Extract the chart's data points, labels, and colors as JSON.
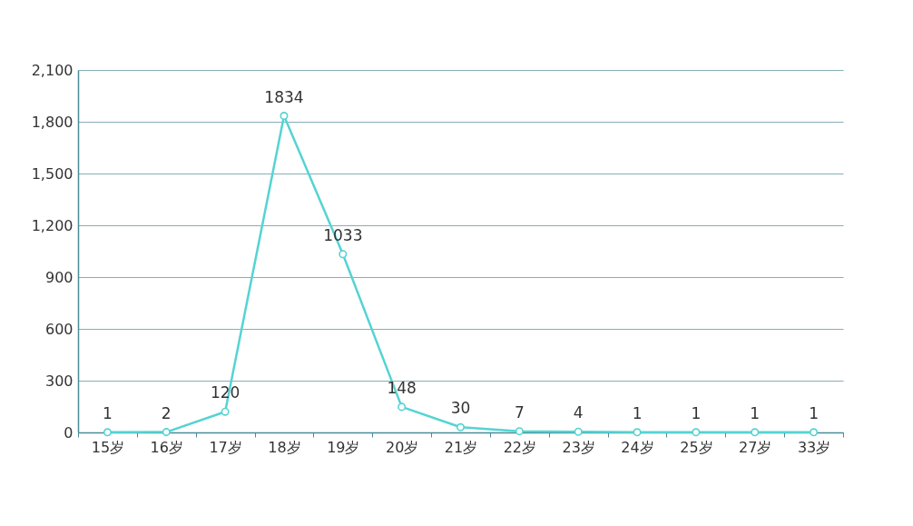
{
  "chart_data": {
    "type": "line",
    "categories": [
      "15岁",
      "16岁",
      "17岁",
      "18岁",
      "19岁",
      "20岁",
      "21岁",
      "22岁",
      "23岁",
      "24岁",
      "25岁",
      "27岁",
      "33岁"
    ],
    "series": [
      {
        "color": "#55d3d3",
        "values": [
          1,
          2,
          120,
          1834,
          1033,
          148,
          30,
          7,
          4,
          1,
          1,
          1,
          1
        ]
      }
    ],
    "ylim": [
      0,
      2100
    ],
    "yticks": [
      0,
      300,
      600,
      900,
      {
        "value": 1200,
        "label": "1,200"
      },
      {
        "value": 1500,
        "label": "1,500"
      },
      {
        "value": 1800,
        "label": "1,800"
      },
      {
        "value": 2100,
        "label": "2,100"
      }
    ],
    "grid": "y",
    "marker": "circle",
    "line_style": "solid",
    "data_labels": true
  }
}
